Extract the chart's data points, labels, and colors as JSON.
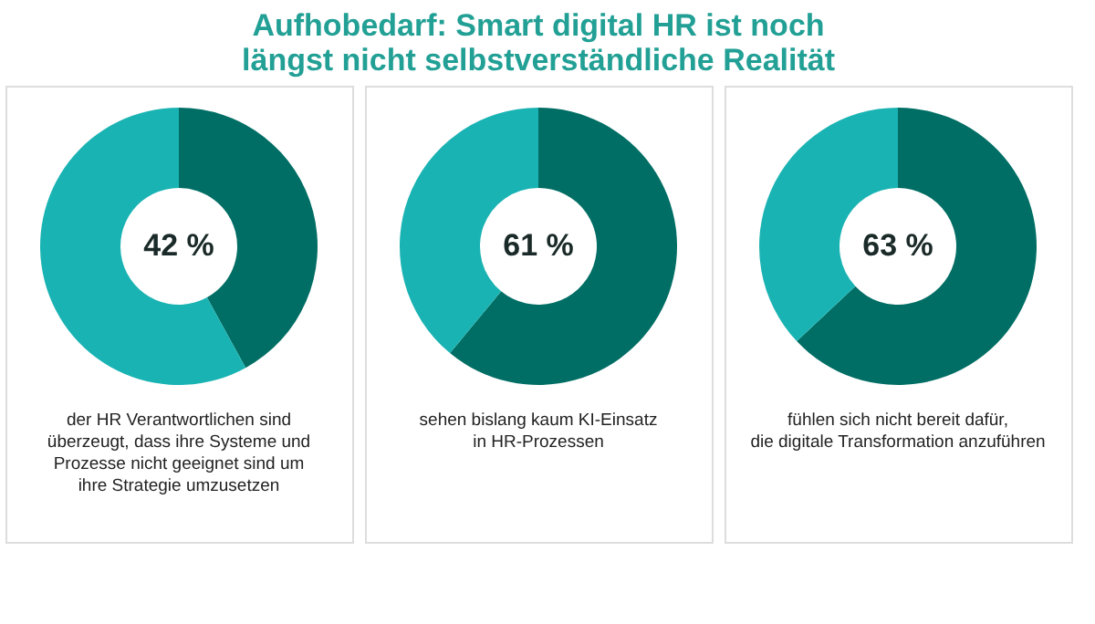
{
  "chart_data": [
    {
      "type": "donut",
      "title": "Aufhobedarf: Smart digital HR ist noch\nlängst nicht selbstverständliche Realität",
      "categories": [
        null,
        null
      ],
      "values": [
        42,
        58
      ],
      "colors": [
        "#006e64",
        "#1ab3b3"
      ],
      "value_labels": [
        "42 %",
        null
      ],
      "annotations": [
        "der HR Verantwortlichen sind\nüberzeugt, dass ihre Systeme und\nProzesse nicht geeignet sind um\nihre Strategie umzusetzen"
      ],
      "legend": false
    },
    {
      "type": "donut",
      "categories": [
        null,
        null
      ],
      "values": [
        61,
        39
      ],
      "colors": [
        "#006e64",
        "#1ab3b3"
      ],
      "value_labels": [
        "61 %",
        null
      ],
      "annotations": [
        "sehen bislang kaum KI-Einsatz\nin HR-Prozessen"
      ],
      "legend": false
    },
    {
      "type": "donut",
      "categories": [
        null,
        null
      ],
      "values": [
        63,
        37
      ],
      "colors": [
        "#006e64",
        "#1ab3b3"
      ],
      "value_labels": [
        "63 %",
        null
      ],
      "annotations": [
        "fühlen sich nicht bereit dafür,\ndie digitale Transformation anzuführen"
      ],
      "legend": false
    }
  ]
}
